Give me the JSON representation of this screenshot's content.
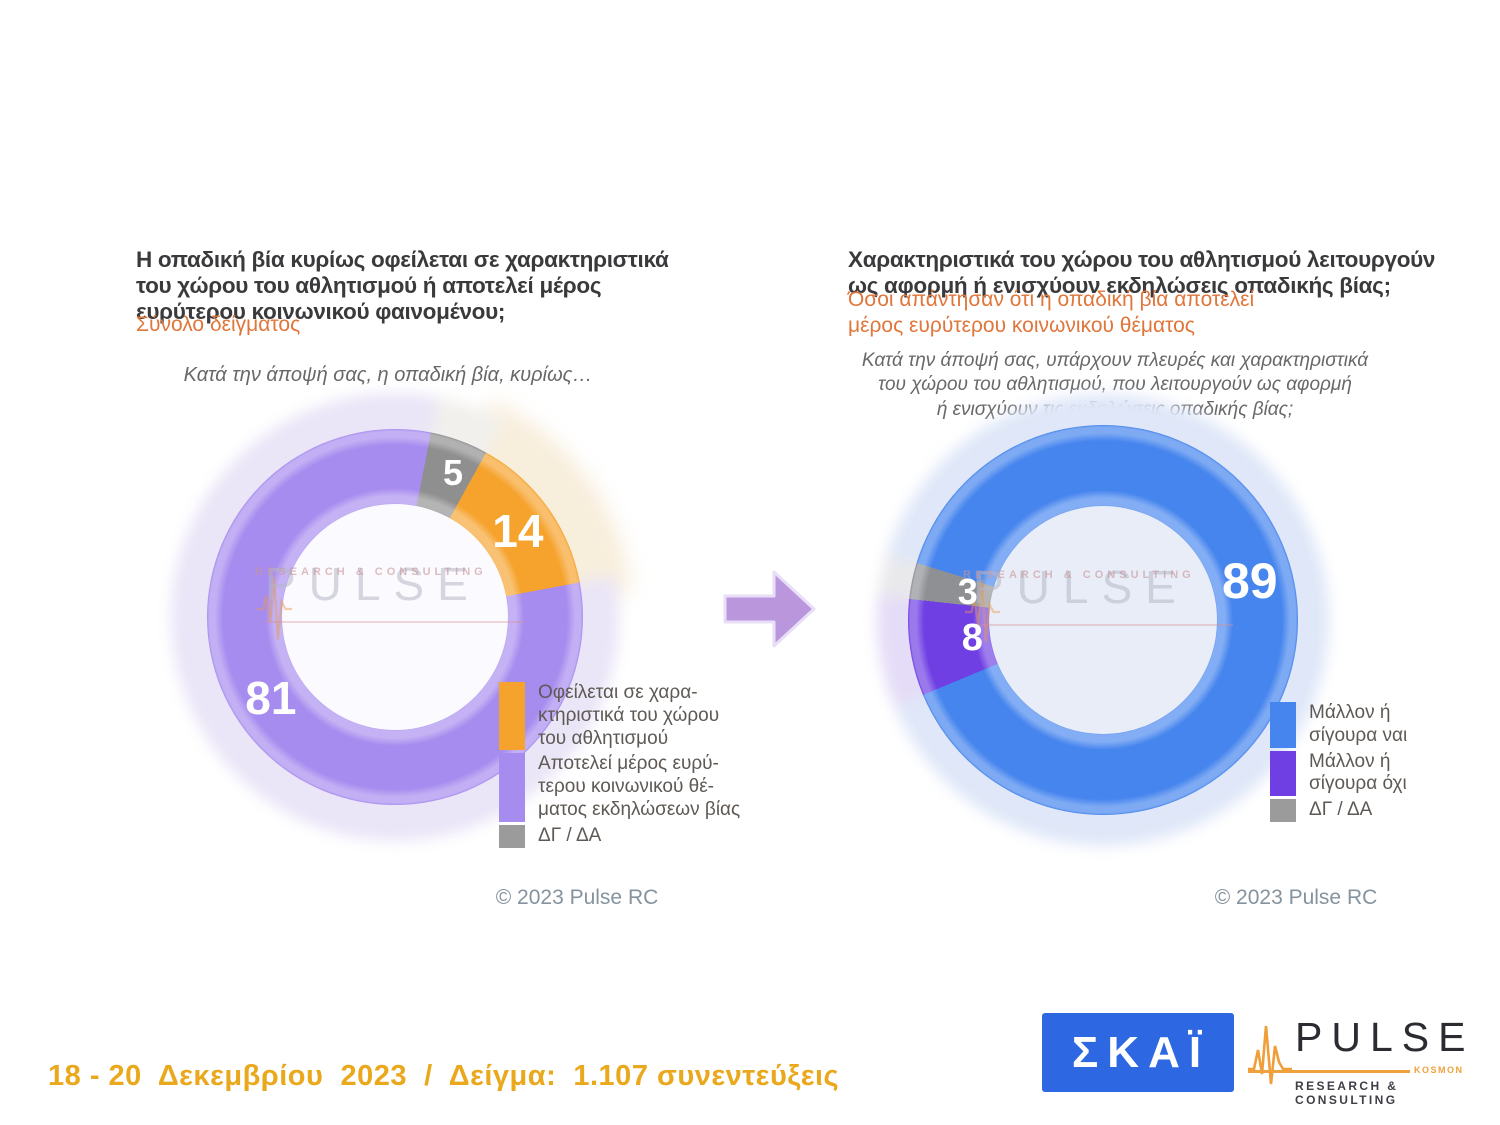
{
  "watermark": {
    "name": "PULSE",
    "sub": "RESEARCH & CONSULTING"
  },
  "footer": {
    "date_sample": "18 - 20  Δεκεμβρίου  2023  /  Δείγμα:  1.107 συνεντεύξεις"
  },
  "logos": {
    "skai": "ΣΚΑΪ",
    "pulse": "PULSE",
    "pulse_kosmon": "KOSMON",
    "pulse_sub": "RESEARCH & CONSULTING"
  },
  "chart_data": [
    {
      "type": "pie",
      "style": "donut",
      "title": "Η οπαδική βία κυρίως οφείλεται σε χαρακτηριστικά\nτου χώρου του αθλητισμού ή αποτελεί μέρος\nευρύτερου κοινωνικού φαινομένου;",
      "subtitle": "Σύνολο δείγματος",
      "question": "Κατά την άποψή σας, η οπαδική βία, κυρίως…",
      "units": "%",
      "segments": [
        {
          "label": "ΔΓ / ΔΑ",
          "value": 5,
          "color": "#8f8f90",
          "halo": "#f1f0ed",
          "label_angle": 22,
          "label_r": 155,
          "label_size": 36
        },
        {
          "label": "Οφείλεται σε χαρακτηριστικά του χώρου του αθλητισμού",
          "value": 14,
          "color": "#f6a32e",
          "halo": "#f8eedc",
          "label_angle": 55,
          "label_r": 150,
          "label_size": 46
        },
        {
          "label": "Αποτελεί μέρος ευρύτερου κοινωνικού θέματος εκδηλώσεων βίας",
          "value": 81,
          "color": "#a78cef",
          "halo": "#eae5f7",
          "label_angle": 237,
          "label_r": 148,
          "label_size": 46
        }
      ],
      "start_angle_deg": 11,
      "legend": [
        {
          "color": "#f6a32e",
          "label": "Οφείλεται σε χαρα-\nκτηριστικά του χώρου\nτου αθλητισμού"
        },
        {
          "color": "#a78cef",
          "label": "Αποτελεί μέρος ευρύ-\nτερου κοινωνικού θέ-\nματος εκδηλώσεων βίας"
        },
        {
          "color": "#9b9b9b",
          "label": "ΔΓ / ΔΑ"
        }
      ],
      "copyright": "© 2023 Pulse RC"
    },
    {
      "type": "pie",
      "style": "donut",
      "title": "Χαρακτηριστικά του χώρου του αθλητισμού λειτουργούν\nως αφορμή ή ενισχύουν εκδηλώσεις οπαδικής βίας;",
      "subtitle": "Όσοι απάντησαν ότι η οπαδική βία αποτελεί\nμέρος ευρύτερου κοινωνικού θέματος",
      "question": "Κατά την άποψή σας, υπάρχουν πλευρές και χαρακτηριστικά\nτου χώρου του αθλητισμού, που λειτουργούν ως αφορμή\nή ενισχύουν τις εκδηλώσεις οπαδικής βίας;",
      "units": "%",
      "segments": [
        {
          "label": "Μάλλον ή σίγουρα ναι",
          "value": 89,
          "color": "#4685ee",
          "halo": "#dfe7f8",
          "label_angle": 75,
          "label_r": 152,
          "label_size": 50
        },
        {
          "label": "Μάλλον ή σίγουρα όχι",
          "value": 8,
          "color": "#6f3fe4",
          "halo": "#e5dcf7",
          "label_angle": 262,
          "label_r": 132,
          "label_size": 38
        },
        {
          "label": "ΔΓ / ΔΑ",
          "value": 3,
          "color": "#8f9094",
          "halo": "#e9e9ec",
          "label_angle": 281.5,
          "label_r": 138,
          "label_size": 36
        }
      ],
      "start_angle_deg": 287,
      "legend": [
        {
          "color": "#4685ee",
          "label": "Μάλλον ή\nσίγουρα ναι"
        },
        {
          "color": "#6f3fe4",
          "label": "Μάλλον ή\nσίγουρα όχι"
        },
        {
          "color": "#9b9b9b",
          "label": "ΔΓ / ΔΑ"
        }
      ],
      "copyright": "© 2023 Pulse RC"
    }
  ]
}
